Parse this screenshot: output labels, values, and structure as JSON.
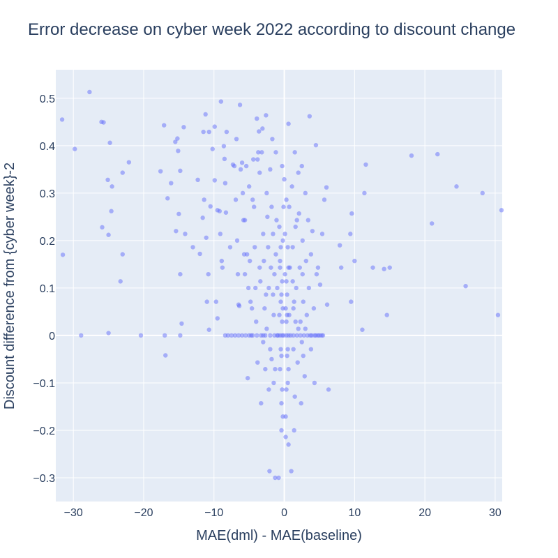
{
  "chart_data": {
    "type": "scatter",
    "title": "Error decrease on cyber week 2022 according to discount change",
    "xlabel": "MAE(dml) - MAE(baseline)",
    "ylabel": "Discount difference from {cyber week}-2",
    "xlim": [
      -32.5,
      31
    ],
    "ylim": [
      -0.35,
      0.56
    ],
    "xticks": [
      -30,
      -20,
      -10,
      0,
      10,
      20,
      30
    ],
    "xtick_labels": [
      "−30",
      "−20",
      "−10",
      "0",
      "10",
      "20",
      "30"
    ],
    "yticks": [
      -0.3,
      -0.2,
      -0.1,
      0,
      0.1,
      0.2,
      0.3,
      0.4,
      0.5
    ],
    "ytick_labels": [
      "−0.3",
      "−0.2",
      "−0.1",
      "0",
      "0.1",
      "0.2",
      "0.3",
      "0.4",
      "0.5"
    ],
    "grid": true,
    "legend": "none",
    "colors": {
      "marker": "#636efa",
      "plot_bg": "#e5ecf6",
      "grid": "#ffffff",
      "text": "#2a3f5f"
    },
    "points": [
      {
        "x": -31.6,
        "y": 0.455
      },
      {
        "x": -31.5,
        "y": 0.17
      },
      {
        "x": -29.8,
        "y": 0.393
      },
      {
        "x": -28.9,
        "y": 0.0
      },
      {
        "x": -27.7,
        "y": 0.513
      },
      {
        "x": -26.0,
        "y": 0.45
      },
      {
        "x": -25.7,
        "y": 0.449
      },
      {
        "x": -25.9,
        "y": 0.228
      },
      {
        "x": -25.1,
        "y": 0.328
      },
      {
        "x": -24.8,
        "y": 0.406
      },
      {
        "x": -24.5,
        "y": 0.314
      },
      {
        "x": -24.6,
        "y": 0.262
      },
      {
        "x": -25.0,
        "y": 0.212
      },
      {
        "x": -25.0,
        "y": 0.005
      },
      {
        "x": -23.0,
        "y": 0.343
      },
      {
        "x": -23.0,
        "y": 0.171
      },
      {
        "x": -23.3,
        "y": 0.114
      },
      {
        "x": -22.1,
        "y": 0.365
      },
      {
        "x": -20.4,
        "y": 0.0
      },
      {
        "x": -17.6,
        "y": 0.346
      },
      {
        "x": -17.1,
        "y": 0.443
      },
      {
        "x": -16.6,
        "y": 0.289
      },
      {
        "x": -17.0,
        "y": 0.0
      },
      {
        "x": -16.9,
        "y": -0.042
      },
      {
        "x": -16.1,
        "y": 0.321
      },
      {
        "x": -15.5,
        "y": 0.408
      },
      {
        "x": -15.2,
        "y": 0.415
      },
      {
        "x": -15.1,
        "y": 0.389
      },
      {
        "x": -15.0,
        "y": 0.256
      },
      {
        "x": -15.4,
        "y": 0.22
      },
      {
        "x": -14.8,
        "y": 0.347
      },
      {
        "x": -14.8,
        "y": 0.129
      },
      {
        "x": -14.6,
        "y": 0.025
      },
      {
        "x": -14.8,
        "y": 0.0
      },
      {
        "x": -14.3,
        "y": 0.439
      },
      {
        "x": -14.1,
        "y": 0.214
      },
      {
        "x": -13.0,
        "y": 0.186
      },
      {
        "x": -12.3,
        "y": 0.328
      },
      {
        "x": -12.0,
        "y": 0.172
      },
      {
        "x": -11.5,
        "y": 0.429
      },
      {
        "x": -11.4,
        "y": 0.286
      },
      {
        "x": -11.6,
        "y": 0.248
      },
      {
        "x": -11.2,
        "y": 0.466
      },
      {
        "x": -11.1,
        "y": 0.206
      },
      {
        "x": -11.0,
        "y": 0.071
      },
      {
        "x": -10.7,
        "y": 0.429
      },
      {
        "x": -10.5,
        "y": 0.272
      },
      {
        "x": -10.8,
        "y": 0.129
      },
      {
        "x": -10.7,
        "y": 0.012
      },
      {
        "x": -10.2,
        "y": 0.393
      },
      {
        "x": -9.9,
        "y": 0.44
      },
      {
        "x": -9.9,
        "y": 0.327
      },
      {
        "x": -9.7,
        "y": 0.071
      },
      {
        "x": -9.5,
        "y": 0.036
      },
      {
        "x": -9.5,
        "y": 0.264
      },
      {
        "x": -9.2,
        "y": 0.262
      },
      {
        "x": -9.0,
        "y": 0.493
      },
      {
        "x": -9.1,
        "y": 0.214
      },
      {
        "x": -8.9,
        "y": 0.157
      },
      {
        "x": -8.8,
        "y": 0.143
      },
      {
        "x": -8.6,
        "y": 0.399
      },
      {
        "x": -8.5,
        "y": 0.372
      },
      {
        "x": -8.4,
        "y": 0.321
      },
      {
        "x": -8.3,
        "y": 0.259
      },
      {
        "x": -8.2,
        "y": 0.429
      },
      {
        "x": -8.0,
        "y": 0.0
      },
      {
        "x": -7.7,
        "y": 0.186
      },
      {
        "x": -7.3,
        "y": 0.36
      },
      {
        "x": -7.1,
        "y": 0.357
      },
      {
        "x": -6.9,
        "y": 0.286
      },
      {
        "x": -6.8,
        "y": 0.414
      },
      {
        "x": -6.7,
        "y": 0.2
      },
      {
        "x": -6.6,
        "y": 0.129
      },
      {
        "x": -6.5,
        "y": 0.065
      },
      {
        "x": -6.4,
        "y": 0.062
      },
      {
        "x": -6.3,
        "y": 0.486
      },
      {
        "x": -6.2,
        "y": 0.35
      },
      {
        "x": -6.0,
        "y": 0.364
      },
      {
        "x": -5.9,
        "y": 0.3
      },
      {
        "x": -5.8,
        "y": 0.243
      },
      {
        "x": -5.7,
        "y": 0.171
      },
      {
        "x": -5.6,
        "y": 0.129
      },
      {
        "x": -5.5,
        "y": 0.0
      },
      {
        "x": -5.6,
        "y": 0.243
      },
      {
        "x": -5.4,
        "y": 0.357
      },
      {
        "x": -5.3,
        "y": 0.171
      },
      {
        "x": -5.2,
        "y": -0.09
      },
      {
        "x": -5.1,
        "y": 0.1
      },
      {
        "x": -5.0,
        "y": 0.314
      },
      {
        "x": -4.9,
        "y": 0.157
      },
      {
        "x": -4.8,
        "y": 0.071
      },
      {
        "x": -4.7,
        "y": 0.0
      },
      {
        "x": -4.6,
        "y": 0.057
      },
      {
        "x": -4.5,
        "y": 0.286
      },
      {
        "x": -4.4,
        "y": 0.371
      },
      {
        "x": -4.3,
        "y": 0.271
      },
      {
        "x": -4.2,
        "y": 0.186
      },
      {
        "x": -4.1,
        "y": 0.1
      },
      {
        "x": -4.0,
        "y": 0.029
      },
      {
        "x": -3.9,
        "y": 0.457
      },
      {
        "x": -3.8,
        "y": 0.371
      },
      {
        "x": -3.7,
        "y": 0.386
      },
      {
        "x": -3.6,
        "y": 0.43
      },
      {
        "x": -3.5,
        "y": 0.343
      },
      {
        "x": -3.5,
        "y": 0.143
      },
      {
        "x": -3.4,
        "y": 0.114
      },
      {
        "x": -3.3,
        "y": 0.0
      },
      {
        "x": -3.3,
        "y": -0.143
      },
      {
        "x": -3.2,
        "y": 0.386
      },
      {
        "x": -3.1,
        "y": 0.436
      },
      {
        "x": -3.0,
        "y": 0.214
      },
      {
        "x": -2.9,
        "y": 0.157
      },
      {
        "x": -2.8,
        "y": 0.057
      },
      {
        "x": -2.7,
        "y": 0.0
      },
      {
        "x": -2.6,
        "y": 0.464
      },
      {
        "x": -2.5,
        "y": 0.3
      },
      {
        "x": -2.4,
        "y": 0.25
      },
      {
        "x": -2.3,
        "y": 0.186
      },
      {
        "x": -2.2,
        "y": 0.1
      },
      {
        "x": -2.2,
        "y": -0.114
      },
      {
        "x": -2.1,
        "y": -0.286
      },
      {
        "x": -2.0,
        "y": 0.35
      },
      {
        "x": -1.9,
        "y": 0.143
      },
      {
        "x": -1.8,
        "y": -0.05
      },
      {
        "x": -1.7,
        "y": 0.414
      },
      {
        "x": -1.6,
        "y": 0.214
      },
      {
        "x": -1.5,
        "y": 0.043
      },
      {
        "x": -1.4,
        "y": 0.0
      },
      {
        "x": -1.3,
        "y": -0.3
      },
      {
        "x": -1.2,
        "y": 0.386
      },
      {
        "x": -1.1,
        "y": 0.243
      },
      {
        "x": -1.0,
        "y": 0.1
      },
      {
        "x": -0.9,
        "y": 0.0
      },
      {
        "x": -0.8,
        "y": -0.3
      },
      {
        "x": -0.7,
        "y": 0.229
      },
      {
        "x": -0.6,
        "y": 0.157
      },
      {
        "x": -0.5,
        "y": 0.071
      },
      {
        "x": -0.4,
        "y": -0.143
      },
      {
        "x": -0.3,
        "y": 0.357
      },
      {
        "x": -0.2,
        "y": 0.2
      },
      {
        "x": -0.1,
        "y": 0.0
      },
      {
        "x": 0.0,
        "y": 0.329
      },
      {
        "x": 0.1,
        "y": 0.129
      },
      {
        "x": 0.2,
        "y": -0.214
      },
      {
        "x": 0.3,
        "y": 0.286
      },
      {
        "x": 0.4,
        "y": 0.043
      },
      {
        "x": 0.5,
        "y": -0.1
      },
      {
        "x": 0.6,
        "y": 0.446
      },
      {
        "x": 0.7,
        "y": 0.271
      },
      {
        "x": 0.8,
        "y": 0.143
      },
      {
        "x": 0.9,
        "y": 0.0
      },
      {
        "x": 1.0,
        "y": -0.286
      },
      {
        "x": 1.1,
        "y": 0.314
      },
      {
        "x": 1.2,
        "y": 0.186
      },
      {
        "x": 1.3,
        "y": 0.057
      },
      {
        "x": 1.4,
        "y": -0.2
      },
      {
        "x": 1.5,
        "y": 0.386
      },
      {
        "x": 1.6,
        "y": 0.229
      },
      {
        "x": 1.7,
        "y": 0.1
      },
      {
        "x": 1.8,
        "y": 0.0
      },
      {
        "x": 1.9,
        "y": -0.057
      },
      {
        "x": 2.0,
        "y": 0.343
      },
      {
        "x": 2.1,
        "y": 0.257
      },
      {
        "x": 2.2,
        "y": 0.143
      },
      {
        "x": 2.3,
        "y": 0.029
      },
      {
        "x": 2.4,
        "y": -0.143
      },
      {
        "x": 2.5,
        "y": 0.357
      },
      {
        "x": 2.6,
        "y": 0.2
      },
      {
        "x": 2.7,
        "y": 0.071
      },
      {
        "x": 2.8,
        "y": 0.0
      },
      {
        "x": 2.9,
        "y": -0.086
      },
      {
        "x": 3.0,
        "y": 0.3
      },
      {
        "x": 3.1,
        "y": 0.157
      },
      {
        "x": 3.2,
        "y": 0.043
      },
      {
        "x": 3.4,
        "y": 0.243
      },
      {
        "x": 3.5,
        "y": 0.1
      },
      {
        "x": 3.6,
        "y": 0.462
      },
      {
        "x": 3.7,
        "y": 0.0
      },
      {
        "x": 3.8,
        "y": 0.171
      },
      {
        "x": 4.0,
        "y": 0.22
      },
      {
        "x": 4.2,
        "y": 0.057
      },
      {
        "x": 4.3,
        "y": -0.1
      },
      {
        "x": 4.5,
        "y": 0.401
      },
      {
        "x": 4.6,
        "y": 0.129
      },
      {
        "x": 4.8,
        "y": 0.143
      },
      {
        "x": 5.0,
        "y": 0.0
      },
      {
        "x": 5.1,
        "y": 0.107
      },
      {
        "x": 5.4,
        "y": 0.214
      },
      {
        "x": 5.7,
        "y": 0.286
      },
      {
        "x": 6.0,
        "y": 0.312
      },
      {
        "x": 6.1,
        "y": 0.065
      },
      {
        "x": 6.3,
        "y": -0.114
      },
      {
        "x": 7.9,
        "y": 0.19
      },
      {
        "x": 8.1,
        "y": 0.143
      },
      {
        "x": 9.6,
        "y": 0.257
      },
      {
        "x": 9.4,
        "y": 0.214
      },
      {
        "x": 9.5,
        "y": 0.071
      },
      {
        "x": 10.0,
        "y": 0.157
      },
      {
        "x": 11.1,
        "y": 0.012
      },
      {
        "x": 11.4,
        "y": 0.3
      },
      {
        "x": 11.6,
        "y": 0.36
      },
      {
        "x": 12.6,
        "y": 0.143
      },
      {
        "x": 14.2,
        "y": 0.14
      },
      {
        "x": 14.6,
        "y": 0.043
      },
      {
        "x": 15.0,
        "y": 0.143
      },
      {
        "x": 18.1,
        "y": 0.379
      },
      {
        "x": 21.0,
        "y": 0.236
      },
      {
        "x": 21.8,
        "y": 0.382
      },
      {
        "x": 24.5,
        "y": 0.314
      },
      {
        "x": 25.8,
        "y": 0.104
      },
      {
        "x": 28.2,
        "y": 0.3
      },
      {
        "x": 30.4,
        "y": 0.043
      },
      {
        "x": 30.9,
        "y": 0.264
      },
      {
        "x": -0.5,
        "y": 0.186
      },
      {
        "x": 0.5,
        "y": 0.186
      },
      {
        "x": -0.6,
        "y": 0.143
      },
      {
        "x": 0.6,
        "y": 0.143
      },
      {
        "x": -0.3,
        "y": 0.114
      },
      {
        "x": 0.3,
        "y": 0.114
      },
      {
        "x": -0.4,
        "y": 0.086
      },
      {
        "x": 0.4,
        "y": 0.086
      },
      {
        "x": -0.2,
        "y": 0.057
      },
      {
        "x": 0.2,
        "y": 0.057
      },
      {
        "x": -0.7,
        "y": 0.043
      },
      {
        "x": 0.7,
        "y": 0.043
      },
      {
        "x": -0.3,
        "y": 0.029
      },
      {
        "x": 0.3,
        "y": 0.029
      },
      {
        "x": -0.5,
        "y": -0.029
      },
      {
        "x": 0.5,
        "y": -0.029
      },
      {
        "x": -0.4,
        "y": -0.043
      },
      {
        "x": 0.4,
        "y": -0.043
      },
      {
        "x": -0.6,
        "y": -0.071
      },
      {
        "x": 0.6,
        "y": -0.071
      },
      {
        "x": -0.3,
        "y": -0.114
      },
      {
        "x": 0.3,
        "y": -0.114
      },
      {
        "x": -0.2,
        "y": -0.171
      },
      {
        "x": 0.2,
        "y": -0.171
      },
      {
        "x": -0.4,
        "y": -0.2
      },
      {
        "x": 0.6,
        "y": -0.23
      },
      {
        "x": -0.1,
        "y": 0.271
      },
      {
        "x": 0.1,
        "y": 0.214
      },
      {
        "x": -1.2,
        "y": 0.171
      },
      {
        "x": 1.2,
        "y": 0.114
      },
      {
        "x": -1.4,
        "y": 0.129
      },
      {
        "x": 1.4,
        "y": 0.071
      },
      {
        "x": -1.6,
        "y": 0.086
      },
      {
        "x": 1.6,
        "y": 0.029
      },
      {
        "x": -1.3,
        "y": -0.071
      },
      {
        "x": 1.3,
        "y": -0.029
      },
      {
        "x": -1.5,
        "y": -0.1
      },
      {
        "x": 1.5,
        "y": -0.129
      },
      {
        "x": -2.5,
        "y": 0.014
      },
      {
        "x": 2.5,
        "y": -0.014
      },
      {
        "x": -2.0,
        "y": -0.029
      },
      {
        "x": 2.0,
        "y": 0.014
      },
      {
        "x": -3.0,
        "y": -0.014
      },
      {
        "x": 3.0,
        "y": 0.014
      },
      {
        "x": -2.7,
        "y": -0.071
      },
      {
        "x": 2.7,
        "y": -0.043
      },
      {
        "x": -2.6,
        "y": 0.086
      },
      {
        "x": 2.6,
        "y": 0.129
      },
      {
        "x": -3.8,
        "y": -0.057
      },
      {
        "x": 3.8,
        "y": -0.029
      },
      {
        "x": -1.8,
        "y": 0.271
      },
      {
        "x": 1.8,
        "y": 0.243
      },
      {
        "x": -3.9,
        "y": 0.0
      },
      {
        "x": 3.9,
        "y": 0.0
      },
      {
        "x": -4.5,
        "y": 0.0
      },
      {
        "x": 4.5,
        "y": 0.0
      },
      {
        "x": -6.0,
        "y": 0.0
      },
      {
        "x": 5.5,
        "y": 0.0
      },
      {
        "x": -7.0,
        "y": 0.0
      },
      {
        "x": -6.5,
        "y": 0.0
      },
      {
        "x": -3.0,
        "y": 0.0
      },
      {
        "x": 3.3,
        "y": 0.0
      },
      {
        "x": -2.0,
        "y": 0.0
      },
      {
        "x": 2.3,
        "y": 0.0
      },
      {
        "x": -1.0,
        "y": 0.0
      },
      {
        "x": 1.3,
        "y": 0.0
      },
      {
        "x": -0.6,
        "y": 0.0
      },
      {
        "x": 0.6,
        "y": 0.0
      },
      {
        "x": -0.3,
        "y": 0.0
      },
      {
        "x": 0.3,
        "y": 0.0
      },
      {
        "x": 4.3,
        "y": 0.0
      },
      {
        "x": -5.0,
        "y": 0.0
      },
      {
        "x": -8.4,
        "y": 0.0
      },
      {
        "x": -7.5,
        "y": 0.0
      },
      {
        "x": 5.3,
        "y": 0.0
      },
      {
        "x": 4.8,
        "y": 0.0
      }
    ]
  }
}
